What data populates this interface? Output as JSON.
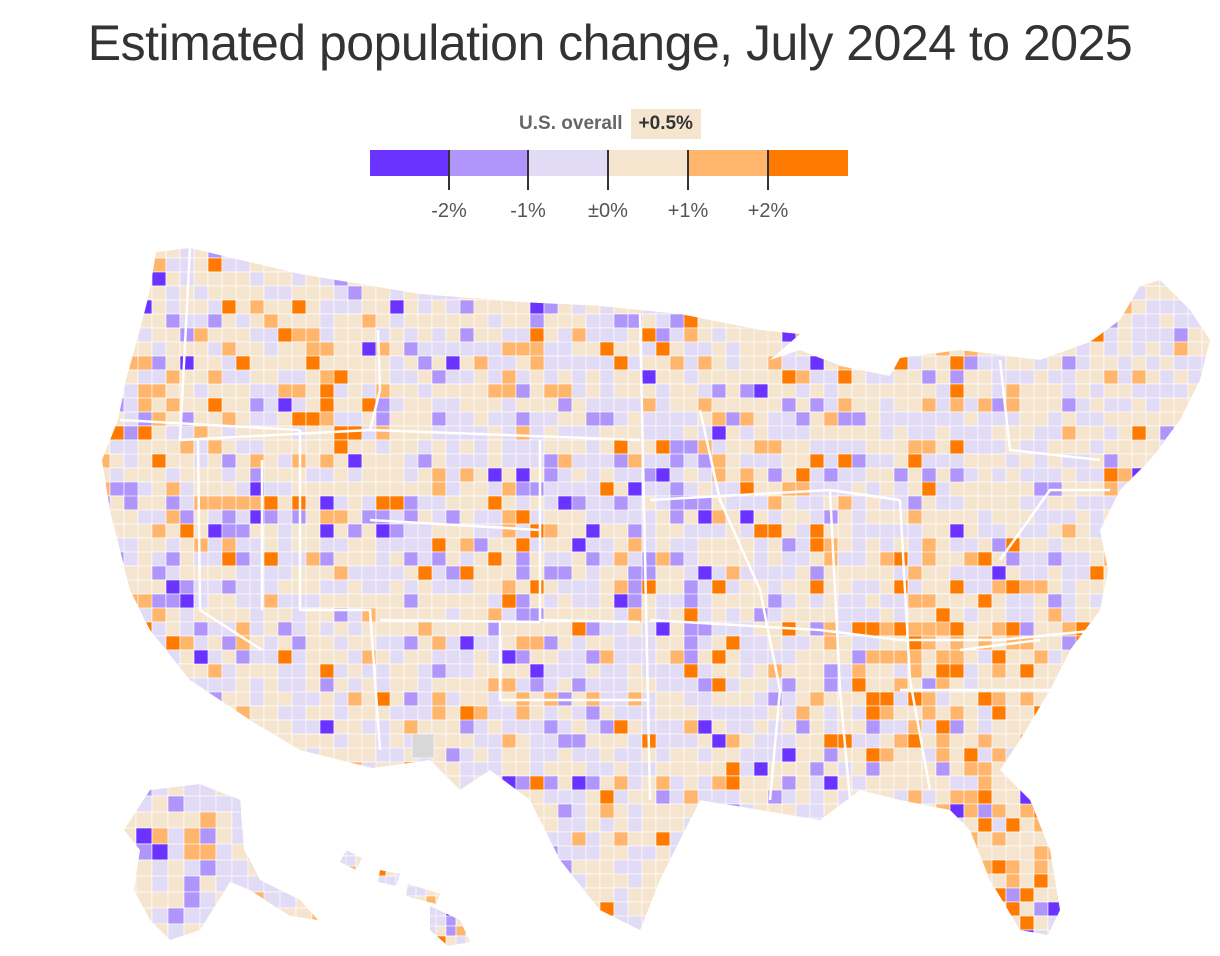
{
  "title": "Estimated population change, July 2024 to 2025",
  "legend": {
    "overall_label": "U.S. overall",
    "overall_value": "+0.5%",
    "bins": [
      {
        "color": "#6a33ff",
        "range": "below -2%"
      },
      {
        "color": "#b096fb",
        "range": "-2% to -1%"
      },
      {
        "color": "#e2dbf6",
        "range": "-1% to 0%"
      },
      {
        "color": "#f5e5cf",
        "range": "0% to +1%"
      },
      {
        "color": "#ffb56c",
        "range": "+1% to +2%"
      },
      {
        "color": "#ff7a00",
        "range": "above +2%"
      }
    ],
    "tick_labels": [
      "-2%",
      "-1%",
      "±0%",
      "+1%",
      "+2%"
    ],
    "no_data_color": "#d8d8d8"
  },
  "map": {
    "subject": "U.S. counties shaded by estimated population change",
    "regions": [
      "Contiguous United States",
      "Alaska",
      "Hawaii"
    ]
  }
}
